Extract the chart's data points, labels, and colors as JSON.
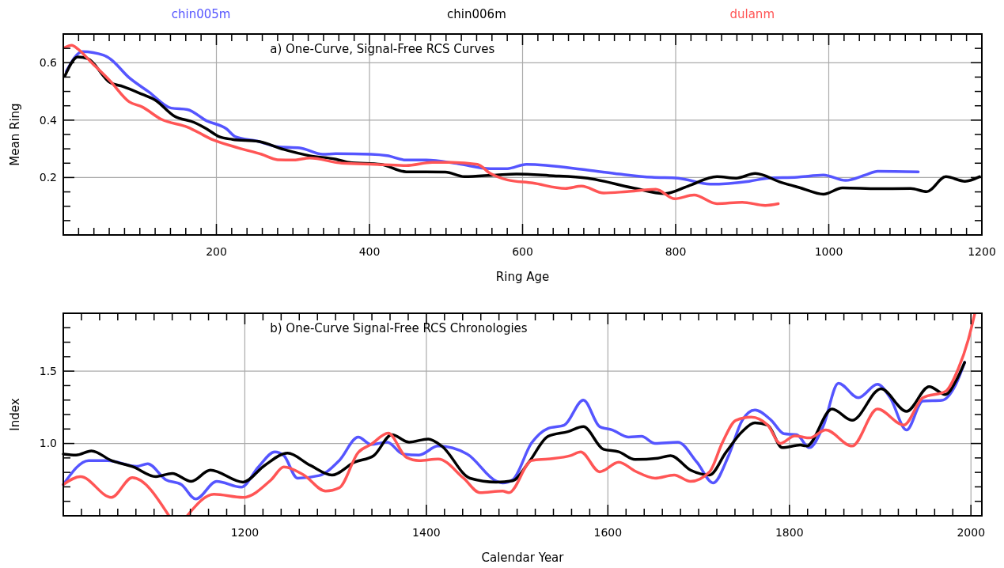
{
  "chart_data": [
    {
      "type": "line",
      "title": "a) One-Curve, Signal-Free RCS Curves",
      "xlabel": "Ring Age",
      "ylabel": "Mean Ring",
      "xlim": [
        0,
        1200
      ],
      "ylim": [
        0,
        0.7
      ],
      "grid": true,
      "legend": "top",
      "xticks": [
        {
          "value": 20,
          "label": null
        },
        {
          "value": 40,
          "label": null
        },
        {
          "value": 60,
          "label": null
        },
        {
          "value": 80,
          "label": null
        },
        {
          "value": 100,
          "label": null
        },
        {
          "value": 120,
          "label": null
        },
        {
          "value": 140,
          "label": null
        },
        {
          "value": 160,
          "label": null
        },
        {
          "value": 180,
          "label": null
        },
        200,
        {
          "value": 220,
          "label": null
        },
        {
          "value": 240,
          "label": null
        },
        {
          "value": 260,
          "label": null
        },
        {
          "value": 280,
          "label": null
        },
        {
          "value": 300,
          "label": null
        },
        {
          "value": 320,
          "label": null
        },
        {
          "value": 340,
          "label": null
        },
        {
          "value": 360,
          "label": null
        },
        {
          "value": 380,
          "label": null
        },
        400,
        {
          "value": 420,
          "label": null
        },
        {
          "value": 440,
          "label": null
        },
        {
          "value": 460,
          "label": null
        },
        {
          "value": 480,
          "label": null
        },
        {
          "value": 500,
          "label": null
        },
        {
          "value": 520,
          "label": null
        },
        {
          "value": 540,
          "label": null
        },
        {
          "value": 560,
          "label": null
        },
        {
          "value": 580,
          "label": null
        },
        600,
        {
          "value": 620,
          "label": null
        },
        {
          "value": 640,
          "label": null
        },
        {
          "value": 660,
          "label": null
        },
        {
          "value": 680,
          "label": null
        },
        {
          "value": 700,
          "label": null
        },
        {
          "value": 720,
          "label": null
        },
        {
          "value": 740,
          "label": null
        },
        {
          "value": 760,
          "label": null
        },
        {
          "value": 780,
          "label": null
        },
        800,
        {
          "value": 820,
          "label": null
        },
        {
          "value": 840,
          "label": null
        },
        {
          "value": 860,
          "label": null
        },
        {
          "value": 880,
          "label": null
        },
        {
          "value": 900,
          "label": null
        },
        {
          "value": 920,
          "label": null
        },
        {
          "value": 940,
          "label": null
        },
        {
          "value": 960,
          "label": null
        },
        {
          "value": 980,
          "label": null
        },
        1000,
        {
          "value": 1020,
          "label": null
        },
        {
          "value": 1040,
          "label": null
        },
        {
          "value": 1060,
          "label": null
        },
        {
          "value": 1080,
          "label": null
        },
        {
          "value": 1100,
          "label": null
        },
        {
          "value": 1120,
          "label": null
        },
        {
          "value": 1140,
          "label": null
        },
        {
          "value": 1160,
          "label": null
        },
        {
          "value": 1180,
          "label": null
        },
        1200
      ],
      "yticks": [
        {
          "value": 0.05,
          "label": null
        },
        {
          "value": 0.1,
          "label": null
        },
        {
          "value": 0.15,
          "label": null
        },
        0.2,
        {
          "value": 0.25,
          "label": null
        },
        {
          "value": 0.3,
          "label": null
        },
        {
          "value": 0.35,
          "label": null
        },
        0.4,
        {
          "value": 0.45,
          "label": null
        },
        {
          "value": 0.5,
          "label": null
        },
        {
          "value": 0.55,
          "label": null
        },
        0.6,
        {
          "value": 0.65,
          "label": null
        }
      ],
      "series": [
        {
          "name": "chin005m",
          "color": "#5555ff",
          "x": [
            4,
            25,
            53,
            61,
            86,
            112,
            141,
            162,
            187,
            213,
            225,
            255,
            280,
            309,
            339,
            356,
            402,
            423,
            448,
            474,
            516,
            558,
            580,
            605,
            685,
            727,
            769,
            803,
            845,
            896,
            921,
            959,
            993,
            1022,
            1048,
            1064,
            1117
          ],
          "values": [
            0.57,
            0.639,
            0.626,
            0.614,
            0.548,
            0.498,
            0.442,
            0.437,
            0.398,
            0.37,
            0.342,
            0.326,
            0.307,
            0.303,
            0.281,
            0.283,
            0.281,
            0.276,
            0.261,
            0.261,
            0.248,
            0.231,
            0.231,
            0.246,
            0.226,
            0.212,
            0.201,
            0.198,
            0.177,
            0.187,
            0.198,
            0.201,
            0.209,
            0.19,
            0.209,
            0.222,
            0.22
          ]
        },
        {
          "name": "chin006m",
          "color": "#000000",
          "x": [
            2,
            19,
            32,
            61,
            78,
            103,
            120,
            145,
            171,
            187,
            204,
            221,
            255,
            288,
            322,
            356,
            373,
            415,
            448,
            499,
            524,
            566,
            592,
            635,
            685,
            744,
            786,
            816,
            854,
            879,
            904,
            938,
            963,
            993,
            1018,
            1064,
            1107,
            1128,
            1153,
            1178,
            1197
          ],
          "values": [
            0.553,
            0.62,
            0.614,
            0.531,
            0.517,
            0.49,
            0.47,
            0.414,
            0.392,
            0.37,
            0.342,
            0.333,
            0.326,
            0.298,
            0.276,
            0.264,
            0.253,
            0.246,
            0.22,
            0.219,
            0.203,
            0.209,
            0.212,
            0.207,
            0.198,
            0.164,
            0.144,
            0.17,
            0.203,
            0.198,
            0.214,
            0.183,
            0.164,
            0.142,
            0.164,
            0.161,
            0.162,
            0.151,
            0.203,
            0.187,
            0.203
          ]
        },
        {
          "name": "dulanm",
          "color": "#ff5555",
          "x": [
            2,
            11,
            19,
            36,
            61,
            86,
            103,
            128,
            162,
            196,
            229,
            259,
            280,
            301,
            322,
            364,
            406,
            448,
            482,
            507,
            541,
            558,
            580,
            613,
            656,
            677,
            706,
            736,
            774,
            799,
            824,
            854,
            887,
            917,
            934
          ],
          "values": [
            0.653,
            0.661,
            0.648,
            0.603,
            0.537,
            0.464,
            0.446,
            0.403,
            0.376,
            0.331,
            0.303,
            0.281,
            0.262,
            0.261,
            0.268,
            0.25,
            0.246,
            0.242,
            0.253,
            0.253,
            0.246,
            0.214,
            0.192,
            0.181,
            0.162,
            0.17,
            0.146,
            0.151,
            0.159,
            0.126,
            0.139,
            0.109,
            0.114,
            0.103,
            0.109
          ]
        }
      ]
    },
    {
      "type": "line",
      "title": "b) One-Curve Signal-Free RCS Chronologies",
      "xlabel": "Calendar Year",
      "ylabel": "Index",
      "xlim": [
        1000,
        2012
      ],
      "ylim": [
        0.5,
        1.9
      ],
      "grid": true,
      "xticks": [
        {
          "value": 1020,
          "label": null
        },
        {
          "value": 1040,
          "label": null
        },
        {
          "value": 1060,
          "label": null
        },
        {
          "value": 1080,
          "label": null
        },
        {
          "value": 1100,
          "label": null
        },
        {
          "value": 1120,
          "label": null
        },
        {
          "value": 1140,
          "label": null
        },
        {
          "value": 1160,
          "label": null
        },
        {
          "value": 1180,
          "label": null
        },
        1200,
        {
          "value": 1220,
          "label": null
        },
        {
          "value": 1240,
          "label": null
        },
        {
          "value": 1260,
          "label": null
        },
        {
          "value": 1280,
          "label": null
        },
        {
          "value": 1300,
          "label": null
        },
        {
          "value": 1320,
          "label": null
        },
        {
          "value": 1340,
          "label": null
        },
        {
          "value": 1360,
          "label": null
        },
        {
          "value": 1380,
          "label": null
        },
        1400,
        {
          "value": 1420,
          "label": null
        },
        {
          "value": 1440,
          "label": null
        },
        {
          "value": 1460,
          "label": null
        },
        {
          "value": 1480,
          "label": null
        },
        {
          "value": 1500,
          "label": null
        },
        {
          "value": 1520,
          "label": null
        },
        {
          "value": 1540,
          "label": null
        },
        {
          "value": 1560,
          "label": null
        },
        {
          "value": 1580,
          "label": null
        },
        1600,
        {
          "value": 1620,
          "label": null
        },
        {
          "value": 1640,
          "label": null
        },
        {
          "value": 1660,
          "label": null
        },
        {
          "value": 1680,
          "label": null
        },
        {
          "value": 1700,
          "label": null
        },
        {
          "value": 1720,
          "label": null
        },
        {
          "value": 1740,
          "label": null
        },
        {
          "value": 1760,
          "label": null
        },
        {
          "value": 1780,
          "label": null
        },
        1800,
        {
          "value": 1820,
          "label": null
        },
        {
          "value": 1840,
          "label": null
        },
        {
          "value": 1860,
          "label": null
        },
        {
          "value": 1880,
          "label": null
        },
        {
          "value": 1900,
          "label": null
        },
        {
          "value": 1920,
          "label": null
        },
        {
          "value": 1940,
          "label": null
        },
        {
          "value": 1960,
          "label": null
        },
        {
          "value": 1980,
          "label": null
        },
        2000
      ],
      "yticks": [
        {
          "value": 0.6,
          "label": null
        },
        {
          "value": 0.7,
          "label": null
        },
        {
          "value": 0.8,
          "label": null
        },
        {
          "value": 0.9,
          "label": null
        },
        {
          "value": 1,
          "label": "1.0"
        },
        {
          "value": 1.1,
          "label": null
        },
        {
          "value": 1.2,
          "label": null
        },
        {
          "value": 1.3,
          "label": null
        },
        {
          "value": 1.4,
          "label": null
        },
        1.5,
        {
          "value": 1.6,
          "label": null
        },
        {
          "value": 1.7,
          "label": null
        },
        {
          "value": 1.8,
          "label": null
        }
      ],
      "series": [
        {
          "color": "#5555ff",
          "x": [
            1000,
            1028,
            1049,
            1081,
            1093,
            1113,
            1130,
            1146,
            1169,
            1196,
            1215,
            1233,
            1243,
            1258,
            1282,
            1304,
            1325,
            1339,
            1357,
            1374,
            1392,
            1413,
            1445,
            1477,
            1484,
            1495,
            1516,
            1534,
            1552,
            1573,
            1591,
            1605,
            1623,
            1637,
            1652,
            1677,
            1698,
            1716,
            1733,
            1748,
            1762,
            1780,
            1794,
            1808,
            1822,
            1837,
            1854,
            1876,
            1897,
            1911,
            1929,
            1947,
            1968,
            1983,
            1993
          ],
          "values": [
            0.716,
            0.882,
            0.882,
            0.842,
            0.86,
            0.749,
            0.716,
            0.616,
            0.738,
            0.698,
            0.838,
            0.942,
            0.916,
            0.76,
            0.778,
            0.882,
            1.044,
            0.993,
            1.009,
            0.927,
            0.92,
            0.982,
            0.927,
            0.74,
            0.727,
            0.749,
            1.004,
            1.104,
            1.127,
            1.3,
            1.116,
            1.093,
            1.044,
            1.049,
            1.0,
            1.009,
            0.871,
            0.727,
            0.916,
            1.16,
            1.231,
            1.16,
            1.067,
            1.06,
            0.971,
            1.116,
            1.416,
            1.316,
            1.409,
            1.316,
            1.093,
            1.293,
            1.298,
            1.404,
            1.56
          ]
        },
        {
          "color": "#000000",
          "x": [
            1000,
            1014,
            1031,
            1053,
            1077,
            1102,
            1120,
            1141,
            1162,
            1198,
            1222,
            1247,
            1272,
            1296,
            1321,
            1342,
            1362,
            1381,
            1402,
            1417,
            1448,
            1477,
            1495,
            1513,
            1534,
            1556,
            1573,
            1595,
            1612,
            1630,
            1655,
            1669,
            1691,
            1712,
            1730,
            1748,
            1762,
            1776,
            1792,
            1812,
            1819,
            1847,
            1869,
            1901,
            1929,
            1954,
            1972,
            1983,
            1993
          ],
          "values": [
            0.927,
            0.92,
            0.949,
            0.882,
            0.838,
            0.771,
            0.793,
            0.738,
            0.816,
            0.733,
            0.849,
            0.933,
            0.849,
            0.782,
            0.871,
            0.916,
            1.06,
            1.009,
            1.031,
            0.982,
            0.76,
            0.733,
            0.742,
            0.871,
            1.049,
            1.082,
            1.116,
            0.96,
            0.942,
            0.889,
            0.898,
            0.916,
            0.816,
            0.782,
            0.938,
            1.082,
            1.142,
            1.127,
            0.971,
            0.989,
            0.982,
            1.238,
            1.16,
            1.378,
            1.222,
            1.393,
            1.338,
            1.427,
            1.56
          ]
        },
        {
          "color": "#ff5555",
          "x": [
            1000,
            1019,
            1053,
            1076,
            1116,
            1126,
            1137,
            1166,
            1198,
            1229,
            1243,
            1265,
            1289,
            1304,
            1325,
            1339,
            1358,
            1378,
            1392,
            1413,
            1441,
            1459,
            1484,
            1491,
            1516,
            1534,
            1559,
            1570,
            1591,
            1612,
            1630,
            1652,
            1673,
            1691,
            1712,
            1726,
            1741,
            1758,
            1776,
            1790,
            1806,
            1822,
            1840,
            1869,
            1897,
            1926,
            1947,
            1972,
            1986,
            1997,
            2004
          ],
          "values": [
            0.716,
            0.771,
            0.627,
            0.764,
            0.504,
            null,
            0.504,
            0.649,
            0.627,
            0.749,
            0.838,
            0.782,
            0.671,
            0.693,
            0.938,
            0.993,
            1.071,
            0.904,
            0.882,
            0.893,
            0.76,
            0.66,
            0.671,
            0.66,
            0.882,
            0.893,
            0.916,
            0.942,
            0.804,
            0.871,
            0.809,
            0.76,
            0.782,
            0.738,
            0.804,
            1.004,
            1.16,
            1.182,
            1.127,
            1.0,
            1.053,
            1.038,
            1.093,
            0.982,
            1.238,
            1.127,
            1.316,
            1.36,
            1.516,
            1.716,
            1.893
          ]
        }
      ]
    }
  ]
}
